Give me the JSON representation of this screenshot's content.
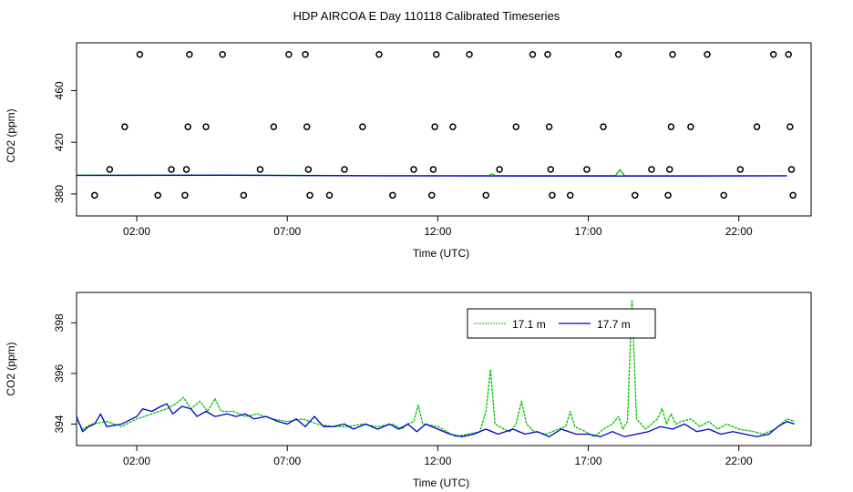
{
  "title": "HDP AIRCOA E  Day 110118  Calibrated Timeseries",
  "colors": {
    "green": "#00c000",
    "blue": "#0000cc",
    "frame": "#000000",
    "marker": "#000000"
  },
  "chart_data": [
    {
      "type": "scatter",
      "xlabel": "Time (UTC)",
      "ylabel": "CO2 (ppm)",
      "xlim": [
        0.0,
        24.4
      ],
      "ylim": [
        363,
        497
      ],
      "x_ticks": [
        "02:00",
        "07:00",
        "12:00",
        "17:00",
        "22:00"
      ],
      "x_tick_values": [
        2,
        7,
        12,
        17,
        22
      ],
      "y_ticks": [
        "380",
        "420",
        "460"
      ],
      "y_tick_values": [
        380,
        420,
        460
      ],
      "grid": false,
      "series": [
        {
          "marker": "circle",
          "points": [
            [
              0.6,
              379
            ],
            [
              1.1,
              399
            ],
            [
              1.6,
              432
            ],
            [
              2.1,
              488
            ],
            [
              2.7,
              379
            ],
            [
              3.15,
              399
            ],
            [
              3.6,
              379
            ],
            [
              3.65,
              399
            ],
            [
              3.7,
              432
            ],
            [
              3.75,
              488
            ],
            [
              4.3,
              432
            ],
            [
              4.85,
              488
            ],
            [
              5.55,
              379
            ],
            [
              6.1,
              399
            ],
            [
              6.55,
              432
            ],
            [
              7.05,
              488
            ],
            [
              7.6,
              488
            ],
            [
              7.65,
              432
            ],
            [
              7.7,
              399
            ],
            [
              7.75,
              379
            ],
            [
              8.4,
              379
            ],
            [
              8.9,
              399
            ],
            [
              9.5,
              432
            ],
            [
              10.05,
              488
            ],
            [
              10.5,
              379
            ],
            [
              11.2,
              399
            ],
            [
              11.8,
              379
            ],
            [
              11.85,
              399
            ],
            [
              11.9,
              432
            ],
            [
              11.95,
              488
            ],
            [
              12.5,
              432
            ],
            [
              13.05,
              488
            ],
            [
              13.6,
              379
            ],
            [
              14.05,
              399
            ],
            [
              14.6,
              432
            ],
            [
              15.15,
              488
            ],
            [
              15.65,
              488
            ],
            [
              15.7,
              432
            ],
            [
              15.75,
              399
            ],
            [
              15.8,
              379
            ],
            [
              16.4,
              379
            ],
            [
              16.95,
              399
            ],
            [
              17.5,
              432
            ],
            [
              18.0,
              488
            ],
            [
              18.55,
              379
            ],
            [
              19.1,
              399
            ],
            [
              19.65,
              379
            ],
            [
              19.7,
              399
            ],
            [
              19.75,
              432
            ],
            [
              19.8,
              488
            ],
            [
              20.4,
              432
            ],
            [
              20.95,
              488
            ],
            [
              21.5,
              379
            ],
            [
              22.05,
              399
            ],
            [
              22.6,
              432
            ],
            [
              23.15,
              488
            ],
            [
              23.65,
              488
            ],
            [
              23.7,
              432
            ],
            [
              23.75,
              399
            ],
            [
              23.8,
              379
            ]
          ]
        },
        {
          "name": "",
          "style": "line",
          "color": "green",
          "points": [
            [
              0,
              394.5
            ],
            [
              5,
              394.6
            ],
            [
              10,
              394.2
            ],
            [
              13.7,
              394.2
            ],
            [
              13.8,
              395.5
            ],
            [
              13.9,
              394.2
            ],
            [
              17.9,
              394.2
            ],
            [
              18.05,
              398.8
            ],
            [
              18.2,
              394.2
            ],
            [
              23.6,
              394.1
            ]
          ]
        },
        {
          "name": "",
          "style": "line",
          "color": "blue",
          "points": [
            [
              0,
              394.4
            ],
            [
              5,
              394.5
            ],
            [
              10,
              394.0
            ],
            [
              15,
              393.9
            ],
            [
              20,
              393.9
            ],
            [
              23.6,
              394.0
            ]
          ]
        }
      ]
    },
    {
      "type": "line",
      "xlabel": "Time (UTC)",
      "ylabel": "CO2 (ppm)",
      "xlim": [
        0.0,
        24.4
      ],
      "ylim": [
        393.15,
        399.2
      ],
      "x_ticks": [
        "02:00",
        "07:00",
        "12:00",
        "17:00",
        "22:00"
      ],
      "x_tick_values": [
        2,
        7,
        12,
        17,
        22
      ],
      "y_ticks": [
        "394",
        "396",
        "398"
      ],
      "y_tick_values": [
        394,
        396,
        398
      ],
      "grid": false,
      "legend": {
        "placement": "top-right",
        "entries": [
          {
            "label": "17.1 m",
            "color": "green"
          },
          {
            "label": "17.7 m",
            "color": "blue"
          }
        ]
      },
      "series": [
        {
          "name": "17.1 m",
          "color": "green",
          "points": [
            [
              0.0,
              394.2
            ],
            [
              0.2,
              393.8
            ],
            [
              0.5,
              394.0
            ],
            [
              1.0,
              394.1
            ],
            [
              1.5,
              393.9
            ],
            [
              2.0,
              394.2
            ],
            [
              2.5,
              394.4
            ],
            [
              3.0,
              394.6
            ],
            [
              3.3,
              394.8
            ],
            [
              3.55,
              395.05
            ],
            [
              3.8,
              394.6
            ],
            [
              4.1,
              394.9
            ],
            [
              4.35,
              394.5
            ],
            [
              4.6,
              395.0
            ],
            [
              4.8,
              394.5
            ],
            [
              5.2,
              394.5
            ],
            [
              5.6,
              394.3
            ],
            [
              6.0,
              394.4
            ],
            [
              6.5,
              394.2
            ],
            [
              7.0,
              394.1
            ],
            [
              7.5,
              394.2
            ],
            [
              8.0,
              394.0
            ],
            [
              8.5,
              393.9
            ],
            [
              9.0,
              393.9
            ],
            [
              9.5,
              394.0
            ],
            [
              10.0,
              393.9
            ],
            [
              10.5,
              394.0
            ],
            [
              10.8,
              393.8
            ],
            [
              11.0,
              394.0
            ],
            [
              11.2,
              394.1
            ],
            [
              11.35,
              394.75
            ],
            [
              11.5,
              394.0
            ],
            [
              12.0,
              393.9
            ],
            [
              12.3,
              393.7
            ],
            [
              12.6,
              393.5
            ],
            [
              13.0,
              393.6
            ],
            [
              13.4,
              393.7
            ],
            [
              13.6,
              394.5
            ],
            [
              13.75,
              396.15
            ],
            [
              13.9,
              394.0
            ],
            [
              14.2,
              393.8
            ],
            [
              14.4,
              393.7
            ],
            [
              14.6,
              394.0
            ],
            [
              14.78,
              394.9
            ],
            [
              14.95,
              394.0
            ],
            [
              15.2,
              393.7
            ],
            [
              15.6,
              393.6
            ],
            [
              16.0,
              393.8
            ],
            [
              16.25,
              393.9
            ],
            [
              16.4,
              394.5
            ],
            [
              16.55,
              393.9
            ],
            [
              16.9,
              393.7
            ],
            [
              17.2,
              393.5
            ],
            [
              17.5,
              393.8
            ],
            [
              17.8,
              394.0
            ],
            [
              18.0,
              394.3
            ],
            [
              18.15,
              393.8
            ],
            [
              18.3,
              394.1
            ],
            [
              18.45,
              398.9
            ],
            [
              18.6,
              394.2
            ],
            [
              18.9,
              393.8
            ],
            [
              19.1,
              394.0
            ],
            [
              19.3,
              394.2
            ],
            [
              19.45,
              394.6
            ],
            [
              19.6,
              394.0
            ],
            [
              19.75,
              394.4
            ],
            [
              19.9,
              394.0
            ],
            [
              20.1,
              394.1
            ],
            [
              20.4,
              394.2
            ],
            [
              20.7,
              393.9
            ],
            [
              21.0,
              394.1
            ],
            [
              21.3,
              393.8
            ],
            [
              21.6,
              394.0
            ],
            [
              22.0,
              393.8
            ],
            [
              22.5,
              393.7
            ],
            [
              22.8,
              393.6
            ],
            [
              23.2,
              393.8
            ],
            [
              23.4,
              394.0
            ],
            [
              23.6,
              394.2
            ],
            [
              23.85,
              394.1
            ]
          ]
        },
        {
          "name": "17.7 m",
          "color": "blue",
          "points": [
            [
              0.0,
              394.3
            ],
            [
              0.2,
              393.7
            ],
            [
              0.4,
              393.9
            ],
            [
              0.6,
              394.0
            ],
            [
              0.8,
              394.4
            ],
            [
              1.0,
              393.9
            ],
            [
              1.5,
              394.0
            ],
            [
              2.0,
              394.3
            ],
            [
              2.2,
              394.6
            ],
            [
              2.5,
              394.5
            ],
            [
              2.8,
              394.7
            ],
            [
              3.0,
              394.8
            ],
            [
              3.2,
              394.4
            ],
            [
              3.5,
              394.7
            ],
            [
              3.8,
              394.6
            ],
            [
              4.0,
              394.3
            ],
            [
              4.3,
              394.5
            ],
            [
              4.6,
              394.3
            ],
            [
              5.0,
              394.4
            ],
            [
              5.3,
              394.3
            ],
            [
              5.6,
              394.4
            ],
            [
              5.9,
              394.2
            ],
            [
              6.3,
              394.3
            ],
            [
              6.7,
              394.1
            ],
            [
              7.0,
              394.0
            ],
            [
              7.3,
              394.2
            ],
            [
              7.6,
              393.9
            ],
            [
              7.9,
              394.3
            ],
            [
              8.2,
              393.9
            ],
            [
              8.5,
              393.9
            ],
            [
              8.9,
              394.0
            ],
            [
              9.2,
              393.8
            ],
            [
              9.6,
              394.0
            ],
            [
              10.0,
              393.8
            ],
            [
              10.4,
              394.0
            ],
            [
              10.7,
              393.8
            ],
            [
              11.0,
              394.0
            ],
            [
              11.3,
              393.7
            ],
            [
              11.6,
              394.0
            ],
            [
              12.0,
              393.8
            ],
            [
              12.4,
              393.6
            ],
            [
              12.8,
              393.5
            ],
            [
              13.2,
              393.6
            ],
            [
              13.6,
              393.8
            ],
            [
              14.0,
              393.6
            ],
            [
              14.5,
              393.8
            ],
            [
              14.9,
              393.6
            ],
            [
              15.3,
              393.7
            ],
            [
              15.7,
              393.5
            ],
            [
              16.1,
              393.8
            ],
            [
              16.6,
              393.6
            ],
            [
              17.0,
              393.6
            ],
            [
              17.4,
              393.5
            ],
            [
              17.8,
              393.7
            ],
            [
              18.2,
              393.5
            ],
            [
              18.6,
              393.6
            ],
            [
              19.0,
              393.7
            ],
            [
              19.4,
              393.9
            ],
            [
              19.8,
              393.8
            ],
            [
              20.2,
              394.0
            ],
            [
              20.6,
              393.7
            ],
            [
              21.0,
              393.8
            ],
            [
              21.4,
              393.6
            ],
            [
              21.8,
              393.7
            ],
            [
              22.2,
              393.6
            ],
            [
              22.6,
              393.5
            ],
            [
              23.0,
              393.6
            ],
            [
              23.3,
              393.9
            ],
            [
              23.6,
              394.1
            ],
            [
              23.85,
              394.0
            ]
          ]
        }
      ]
    }
  ]
}
